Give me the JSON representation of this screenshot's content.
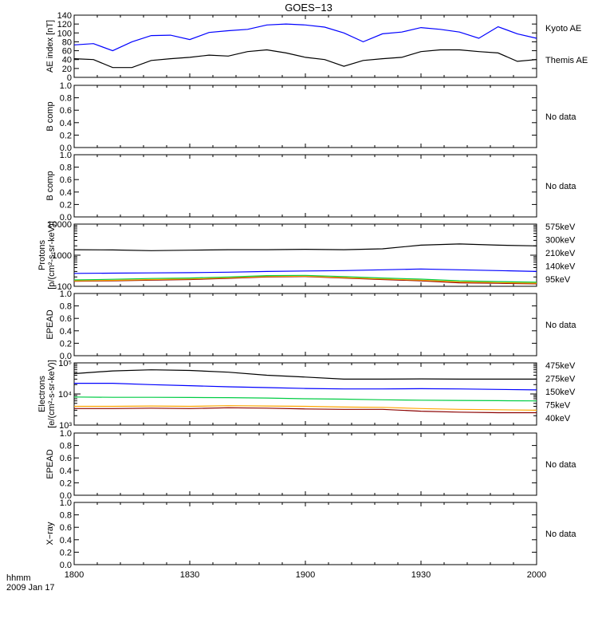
{
  "figure": {
    "title": "GOES−13",
    "footer_line1": "hhmm",
    "footer_line2": "2009 Jan 17",
    "x_tick_labels": [
      "1800",
      "1830",
      "1900",
      "1930",
      "2000"
    ]
  },
  "chart_data": [
    {
      "type": "line",
      "panel": "ae",
      "ylabel": "AE index [nT]",
      "ylim": [
        0,
        140
      ],
      "yscale": "linear",
      "y_ticks": [
        0,
        20,
        40,
        60,
        80,
        100,
        120,
        140
      ],
      "x_minutes": [
        0,
        5,
        10,
        15,
        20,
        25,
        30,
        35,
        40,
        45,
        50,
        55,
        60,
        65,
        70,
        75,
        80,
        85,
        90,
        95,
        100,
        105,
        110,
        115,
        120
      ],
      "series": [
        {
          "name": "Kyoto AE",
          "color": "#0000ff",
          "values": [
            73,
            76,
            60,
            80,
            94,
            95,
            85,
            101,
            105,
            108,
            118,
            120,
            118,
            113,
            100,
            80,
            98,
            102,
            112,
            108,
            102,
            88,
            114,
            98,
            88
          ]
        },
        {
          "name": "Themis AE",
          "color": "#000000",
          "values": [
            42,
            40,
            22,
            22,
            38,
            42,
            45,
            50,
            48,
            58,
            62,
            55,
            45,
            40,
            25,
            38,
            42,
            45,
            58,
            62,
            62,
            58,
            55,
            36,
            40
          ]
        }
      ]
    },
    {
      "type": "line",
      "panel": "b1",
      "ylabel": "B comp",
      "ylim": [
        0,
        1
      ],
      "yscale": "linear",
      "y_ticks": [
        0.0,
        0.2,
        0.4,
        0.6,
        0.8,
        1.0
      ],
      "status": "No data",
      "series": []
    },
    {
      "type": "line",
      "panel": "b2",
      "ylabel": "B comp",
      "ylim": [
        0,
        1
      ],
      "yscale": "linear",
      "y_ticks": [
        0.0,
        0.2,
        0.4,
        0.6,
        0.8,
        1.0
      ],
      "status": "No data",
      "series": []
    },
    {
      "type": "line",
      "panel": "protons",
      "ylabel_line1": "Protons",
      "ylabel_line2": "[p/(cm²-s-sr-keV)]",
      "ylim": [
        100,
        10000
      ],
      "yscale": "log",
      "y_tick_labels": [
        "100",
        "1000",
        "10000"
      ],
      "x_minutes": [
        0,
        10,
        20,
        30,
        40,
        50,
        60,
        70,
        80,
        90,
        100,
        110,
        120
      ],
      "series": [
        {
          "name": "575keV",
          "color": "#8b0000",
          "values": [
            145,
            150,
            158,
            165,
            180,
            200,
            205,
            185,
            165,
            150,
            130,
            125,
            120
          ]
        },
        {
          "name": "300keV",
          "color": "#ffa500",
          "values": [
            150,
            156,
            165,
            172,
            188,
            208,
            212,
            192,
            172,
            158,
            138,
            132,
            126
          ]
        },
        {
          "name": "210keV",
          "color": "#00cc44",
          "values": [
            160,
            168,
            178,
            185,
            200,
            220,
            225,
            205,
            185,
            170,
            150,
            142,
            135
          ]
        },
        {
          "name": "140keV",
          "color": "#0000ff",
          "values": [
            260,
            265,
            270,
            275,
            285,
            300,
            310,
            320,
            340,
            360,
            340,
            320,
            300
          ]
        },
        {
          "name": "95keV",
          "color": "#000000",
          "values": [
            1500,
            1480,
            1400,
            1450,
            1500,
            1500,
            1550,
            1500,
            1600,
            2100,
            2300,
            2100,
            2000
          ]
        }
      ]
    },
    {
      "type": "line",
      "panel": "epead1",
      "ylabel": "EPEAD",
      "ylim": [
        0,
        1
      ],
      "yscale": "linear",
      "y_ticks": [
        0.0,
        0.2,
        0.4,
        0.6,
        0.8,
        1.0
      ],
      "status": "No data",
      "series": []
    },
    {
      "type": "line",
      "panel": "electrons",
      "ylabel_line1": "Electrons",
      "ylabel_line2": "[e/(cm²-s-sr-keV)]",
      "ylim": [
        1000,
        100000
      ],
      "yscale": "log",
      "y_tick_labels": [
        "10³",
        "10⁴",
        "10⁵"
      ],
      "x_minutes": [
        0,
        10,
        20,
        30,
        40,
        50,
        60,
        70,
        80,
        90,
        100,
        110,
        120
      ],
      "series": [
        {
          "name": "475keV",
          "color": "#8b0000",
          "values": [
            3400,
            3400,
            3500,
            3400,
            3600,
            3500,
            3300,
            3200,
            3200,
            2800,
            2600,
            2500,
            2500
          ]
        },
        {
          "name": "275keV",
          "color": "#ffa500",
          "values": [
            4000,
            4000,
            4100,
            4000,
            4200,
            4100,
            4000,
            3800,
            3700,
            3400,
            3200,
            3100,
            3000
          ]
        },
        {
          "name": "150keV",
          "color": "#00cc44",
          "values": [
            8000,
            7800,
            7800,
            7700,
            7600,
            7400,
            7000,
            6800,
            6500,
            6300,
            6200,
            6100,
            6000
          ]
        },
        {
          "name": "75keV",
          "color": "#0000ff",
          "values": [
            22000,
            22000,
            20000,
            18500,
            17000,
            16000,
            15000,
            14500,
            14500,
            14800,
            14500,
            14000,
            13500
          ]
        },
        {
          "name": "40keV",
          "color": "#000000",
          "values": [
            45000,
            55000,
            60000,
            57000,
            50000,
            40000,
            35000,
            30000,
            30000,
            30500,
            30000,
            30000,
            30000
          ]
        }
      ]
    },
    {
      "type": "line",
      "panel": "epead2",
      "ylabel": "EPEAD",
      "ylim": [
        0,
        1
      ],
      "yscale": "linear",
      "y_ticks": [
        0.0,
        0.2,
        0.4,
        0.6,
        0.8,
        1.0
      ],
      "status": "No data",
      "series": []
    },
    {
      "type": "line",
      "panel": "xray",
      "ylabel": "X−ray",
      "ylim": [
        0,
        1
      ],
      "yscale": "linear",
      "y_ticks": [
        0.0,
        0.2,
        0.4,
        0.6,
        0.8,
        1.0
      ],
      "status": "No data",
      "series": []
    }
  ]
}
